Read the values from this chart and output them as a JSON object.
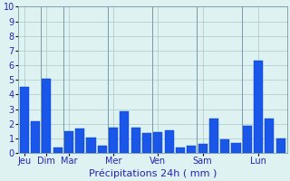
{
  "bar_values": [
    4.5,
    2.2,
    5.05,
    0.35,
    1.5,
    1.7,
    1.05,
    0.5,
    1.75,
    2.85,
    1.75,
    1.35,
    1.4,
    1.55,
    0.35,
    0.5,
    0.6,
    2.35,
    0.95,
    0.7,
    1.85,
    6.3,
    2.35,
    1.0
  ],
  "n_bars": 24,
  "day_labels": [
    "Jeu",
    "Dim",
    "Mar",
    "Mer",
    "Ven",
    "Sam",
    "Lun"
  ],
  "day_tick_positions": [
    0,
    2,
    4,
    8,
    12,
    16,
    21
  ],
  "day_boundaries_x": [
    1.5,
    3.5,
    7.5,
    11.5,
    15.5,
    19.5
  ],
  "xlabel": "Précipitations 24h ( mm )",
  "ylim": [
    0,
    10
  ],
  "yticks": [
    0,
    1,
    2,
    3,
    4,
    5,
    6,
    7,
    8,
    9,
    10
  ],
  "bar_color": "#1a56e8",
  "bar_edge_color": "#0040cc",
  "background_color": "#dff2f2",
  "grid_color": "#a8c8c8",
  "text_color": "#2222bb",
  "xlabel_fontsize": 8,
  "tick_fontsize": 7,
  "spine_color": "#7799aa"
}
